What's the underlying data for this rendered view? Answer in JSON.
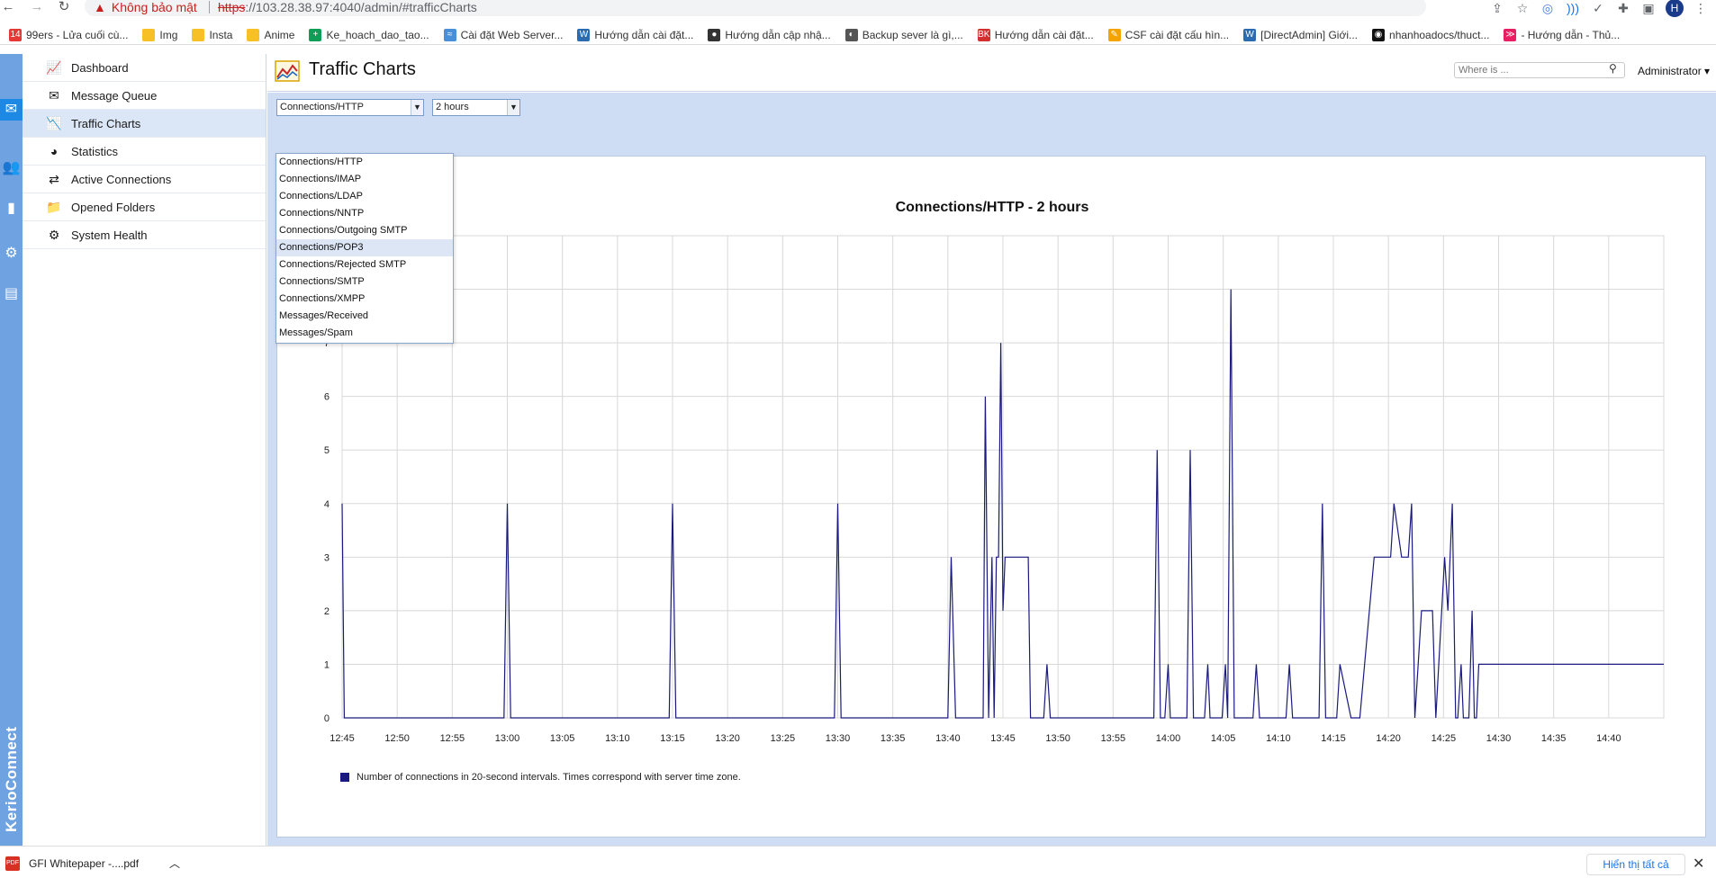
{
  "browser": {
    "security_label": "Không bảo mật",
    "url_proto": "https",
    "url_rest": "://103.28.38.97:4040/admin/#trafficCharts",
    "avatar_letter": "H",
    "bookmarks": [
      {
        "label": "99ers - Lửa cuối cù...",
        "color": "#e53935",
        "glyph": "14"
      },
      {
        "label": "Img",
        "color": "#f6c026",
        "glyph": ""
      },
      {
        "label": "Insta",
        "color": "#f6c026",
        "glyph": ""
      },
      {
        "label": "Anime",
        "color": "#f6c026",
        "glyph": ""
      },
      {
        "label": "Ke_hoach_dao_tao...",
        "color": "#0f9d58",
        "glyph": "+"
      },
      {
        "label": "Cài đặt Web Server...",
        "color": "#4a90d9",
        "glyph": "≈"
      },
      {
        "label": "Hướng dẫn cài đặt...",
        "color": "#2b6cb0",
        "glyph": "W"
      },
      {
        "label": "Hướng dẫn cập nhậ...",
        "color": "#333333",
        "glyph": "●"
      },
      {
        "label": "Backup sever là gì,...",
        "color": "#555555",
        "glyph": "◐"
      },
      {
        "label": "Hướng dẫn cài đặt...",
        "color": "#d32f2f",
        "glyph": "BK"
      },
      {
        "label": "CSF cài đặt cấu hìn...",
        "color": "#f4a300",
        "glyph": "✎"
      },
      {
        "label": "[DirectAdmin] Giới...",
        "color": "#2b6cb0",
        "glyph": "W"
      },
      {
        "label": "nhanhoadocs/thuct...",
        "color": "#111111",
        "glyph": "◉"
      },
      {
        "label": "- Hướng dẫn - Thủ...",
        "color": "#e91e63",
        "glyph": "≫"
      }
    ]
  },
  "app": {
    "brand": "KerioConnect",
    "sidebar": [
      {
        "label": "Dashboard",
        "icon": "dashboard-icon",
        "glyph": "📈",
        "active": false
      },
      {
        "label": "Message Queue",
        "icon": "message-queue-icon",
        "glyph": "✉",
        "active": false
      },
      {
        "label": "Traffic Charts",
        "icon": "traffic-chart-icon",
        "glyph": "📉",
        "active": true
      },
      {
        "label": "Statistics",
        "icon": "statistics-icon",
        "glyph": "◕",
        "active": false
      },
      {
        "label": "Active Connections",
        "icon": "active-connections-icon",
        "glyph": "⇄",
        "active": false
      },
      {
        "label": "Opened Folders",
        "icon": "folder-icon",
        "glyph": "📁",
        "active": false
      },
      {
        "label": "System Health",
        "icon": "system-health-icon",
        "glyph": "⚙",
        "active": false
      }
    ],
    "header": {
      "title": "Traffic Charts",
      "search_placeholder": "Where is ...",
      "user": "Administrator ▾"
    },
    "controls": {
      "metric_selected": "Connections/HTTP",
      "range_selected": "2 hours",
      "metric_options": [
        "Connections/HTTP",
        "Connections/IMAP",
        "Connections/LDAP",
        "Connections/NNTP",
        "Connections/Outgoing SMTP",
        "Connections/POP3",
        "Connections/Rejected SMTP",
        "Connections/SMTP",
        "Connections/XMPP",
        "Messages/Received",
        "Messages/Spam"
      ],
      "hover_option_index": 5
    },
    "legend": "Number of connections in 20-second intervals. Times correspond with server time zone.",
    "colors": {
      "line": "#1a1a7e",
      "grid": "#d8d8d8"
    }
  },
  "chart_data": {
    "type": "line",
    "title": "Connections/HTTP - 2 hours",
    "xlabel": "",
    "ylabel": "",
    "ylim": [
      0,
      9
    ],
    "y_ticks": [
      0,
      1,
      2,
      3,
      4,
      5,
      6,
      7
    ],
    "x_tick_labels": [
      "12:45",
      "12:50",
      "12:55",
      "13:00",
      "13:05",
      "13:10",
      "13:15",
      "13:20",
      "13:25",
      "13:30",
      "13:35",
      "13:40",
      "13:45",
      "13:50",
      "13:55",
      "14:00",
      "14:05",
      "14:10",
      "14:15",
      "14:20",
      "14:25",
      "14:30",
      "14:35",
      "14:40"
    ],
    "grid": true,
    "series": [
      {
        "x_minutes": [
          0,
          0.2,
          14.7,
          15,
          15.3,
          29.7,
          30,
          30.3,
          44.7,
          45,
          45.3,
          55,
          55.3,
          55.7,
          56,
          58.2,
          58.4,
          58.7,
          59,
          59.2,
          59.4,
          59.6,
          59.8,
          60,
          60.2,
          60.4,
          62.3,
          62.5,
          63.7,
          64,
          64.3,
          73.7,
          74,
          74.3,
          74.7,
          75,
          75.2,
          75.4,
          76.7,
          77,
          77.3,
          78.3,
          78.6,
          78.8,
          79.9,
          80.2,
          80.4,
          80.7,
          81,
          81.3,
          82.7,
          83,
          83.3,
          85.7,
          86,
          86.3,
          88.7,
          89,
          89.3,
          90.3,
          90.6,
          91.6,
          92,
          92.2,
          92.4,
          93.7,
          94,
          94.3,
          95.2,
          95.5,
          96.2,
          96.5,
          96.8,
          97.1,
          97.4,
          98,
          98.3,
          98.6,
          99,
          99.3,
          100.1,
          100.4,
          100.8,
          101.1,
          101.3,
          101.6,
          101.8,
          102,
          102.3,
          102.6,
          102.8,
          103,
          103.2,
          103.4,
          103.6,
          104,
          120
        ],
        "values": [
          4,
          0,
          0,
          4,
          0,
          0,
          4,
          0,
          0,
          4,
          0,
          0,
          3,
          0,
          0,
          0,
          6,
          0,
          3,
          0,
          3,
          3,
          7,
          2,
          3,
          3,
          3,
          0,
          0,
          1,
          0,
          0,
          5,
          0,
          0,
          1,
          0,
          0,
          0,
          5,
          0,
          0,
          1,
          0,
          0,
          1,
          0,
          8,
          0,
          0,
          0,
          1,
          0,
          0,
          1,
          0,
          0,
          4,
          0,
          0,
          1,
          0,
          0,
          0,
          0,
          3,
          3,
          3,
          3,
          4,
          3,
          3,
          3,
          4,
          0,
          2,
          2,
          2,
          2,
          0,
          3,
          2,
          4,
          0,
          0,
          1,
          0,
          0,
          0,
          2,
          0,
          0,
          1,
          1,
          1,
          1,
          1
        ]
      }
    ]
  }
}
